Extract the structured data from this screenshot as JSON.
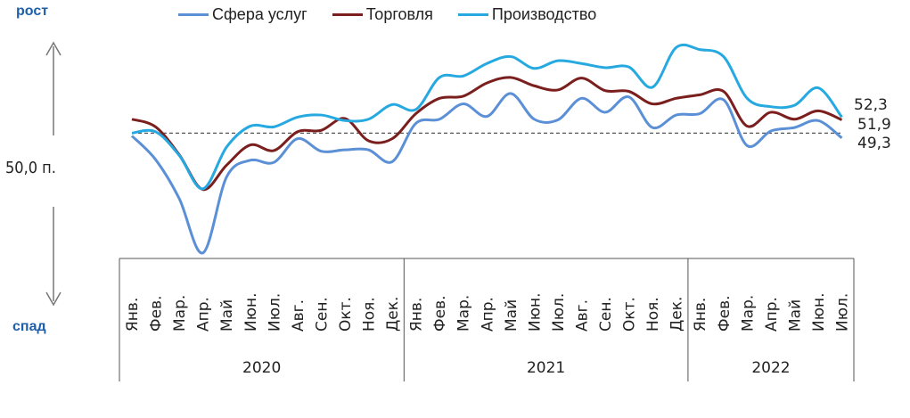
{
  "chart_data": {
    "type": "line",
    "reference_line": 50.0,
    "reference_label": "50,0 п.",
    "up_label": "рост",
    "down_label": "спад",
    "months": [
      "Янв.",
      "Фев.",
      "Мар.",
      "Апр.",
      "Май",
      "Июн.",
      "Июл.",
      "Авг.",
      "Сен.",
      "Окт.",
      "Ноя.",
      "Дек.",
      "Янв.",
      "Фев.",
      "Мар.",
      "Апр.",
      "Май",
      "Июн.",
      "Июл.",
      "Авг.",
      "Сен.",
      "Окт.",
      "Ноя.",
      "Дек.",
      "Янв.",
      "Фев.",
      "Мар.",
      "Апр.",
      "Май",
      "Июн.",
      "Июл."
    ],
    "years": [
      {
        "label": "2020",
        "start": 0,
        "end": 11
      },
      {
        "label": "2021",
        "start": 12,
        "end": 23
      },
      {
        "label": "2022",
        "start": 24,
        "end": 30
      }
    ],
    "ylim": [
      32,
      64
    ],
    "series": [
      {
        "name": "Сфера услуг",
        "color": "#5b8fd6",
        "values": [
          49.6,
          46.2,
          40.6,
          32.8,
          43.7,
          46.1,
          45.8,
          49.2,
          47.4,
          47.6,
          47.6,
          45.9,
          51.4,
          52.0,
          54.2,
          52.4,
          55.7,
          52.0,
          51.9,
          55.0,
          53.0,
          55.2,
          50.8,
          52.6,
          52.8,
          54.8,
          48.2,
          50.3,
          50.8,
          51.8,
          49.3
        ]
      },
      {
        "name": "Торговля",
        "color": "#7b1e1e",
        "values": [
          52.0,
          50.9,
          46.9,
          41.9,
          45.4,
          48.3,
          47.5,
          50.2,
          50.4,
          52.1,
          48.9,
          49.2,
          52.8,
          55.0,
          55.3,
          57.2,
          58.0,
          56.8,
          56.2,
          57.9,
          56.1,
          56.0,
          54.2,
          55.0,
          55.5,
          56.0,
          51.0,
          53.0,
          52.0,
          53.2,
          51.9
        ]
      },
      {
        "name": "Производство",
        "color": "#26a9e0",
        "values": [
          50.0,
          50.2,
          46.8,
          42.0,
          48.0,
          51.0,
          50.9,
          52.3,
          52.6,
          51.8,
          52.0,
          54.1,
          53.4,
          58.0,
          58.2,
          60.0,
          61.0,
          59.3,
          60.4,
          60.0,
          59.4,
          59.5,
          56.6,
          62.3,
          62.0,
          61.0,
          55.0,
          53.8,
          54.0,
          56.5,
          52.3
        ]
      }
    ],
    "end_labels": [
      "52,3",
      "51,9",
      "49,3"
    ]
  }
}
